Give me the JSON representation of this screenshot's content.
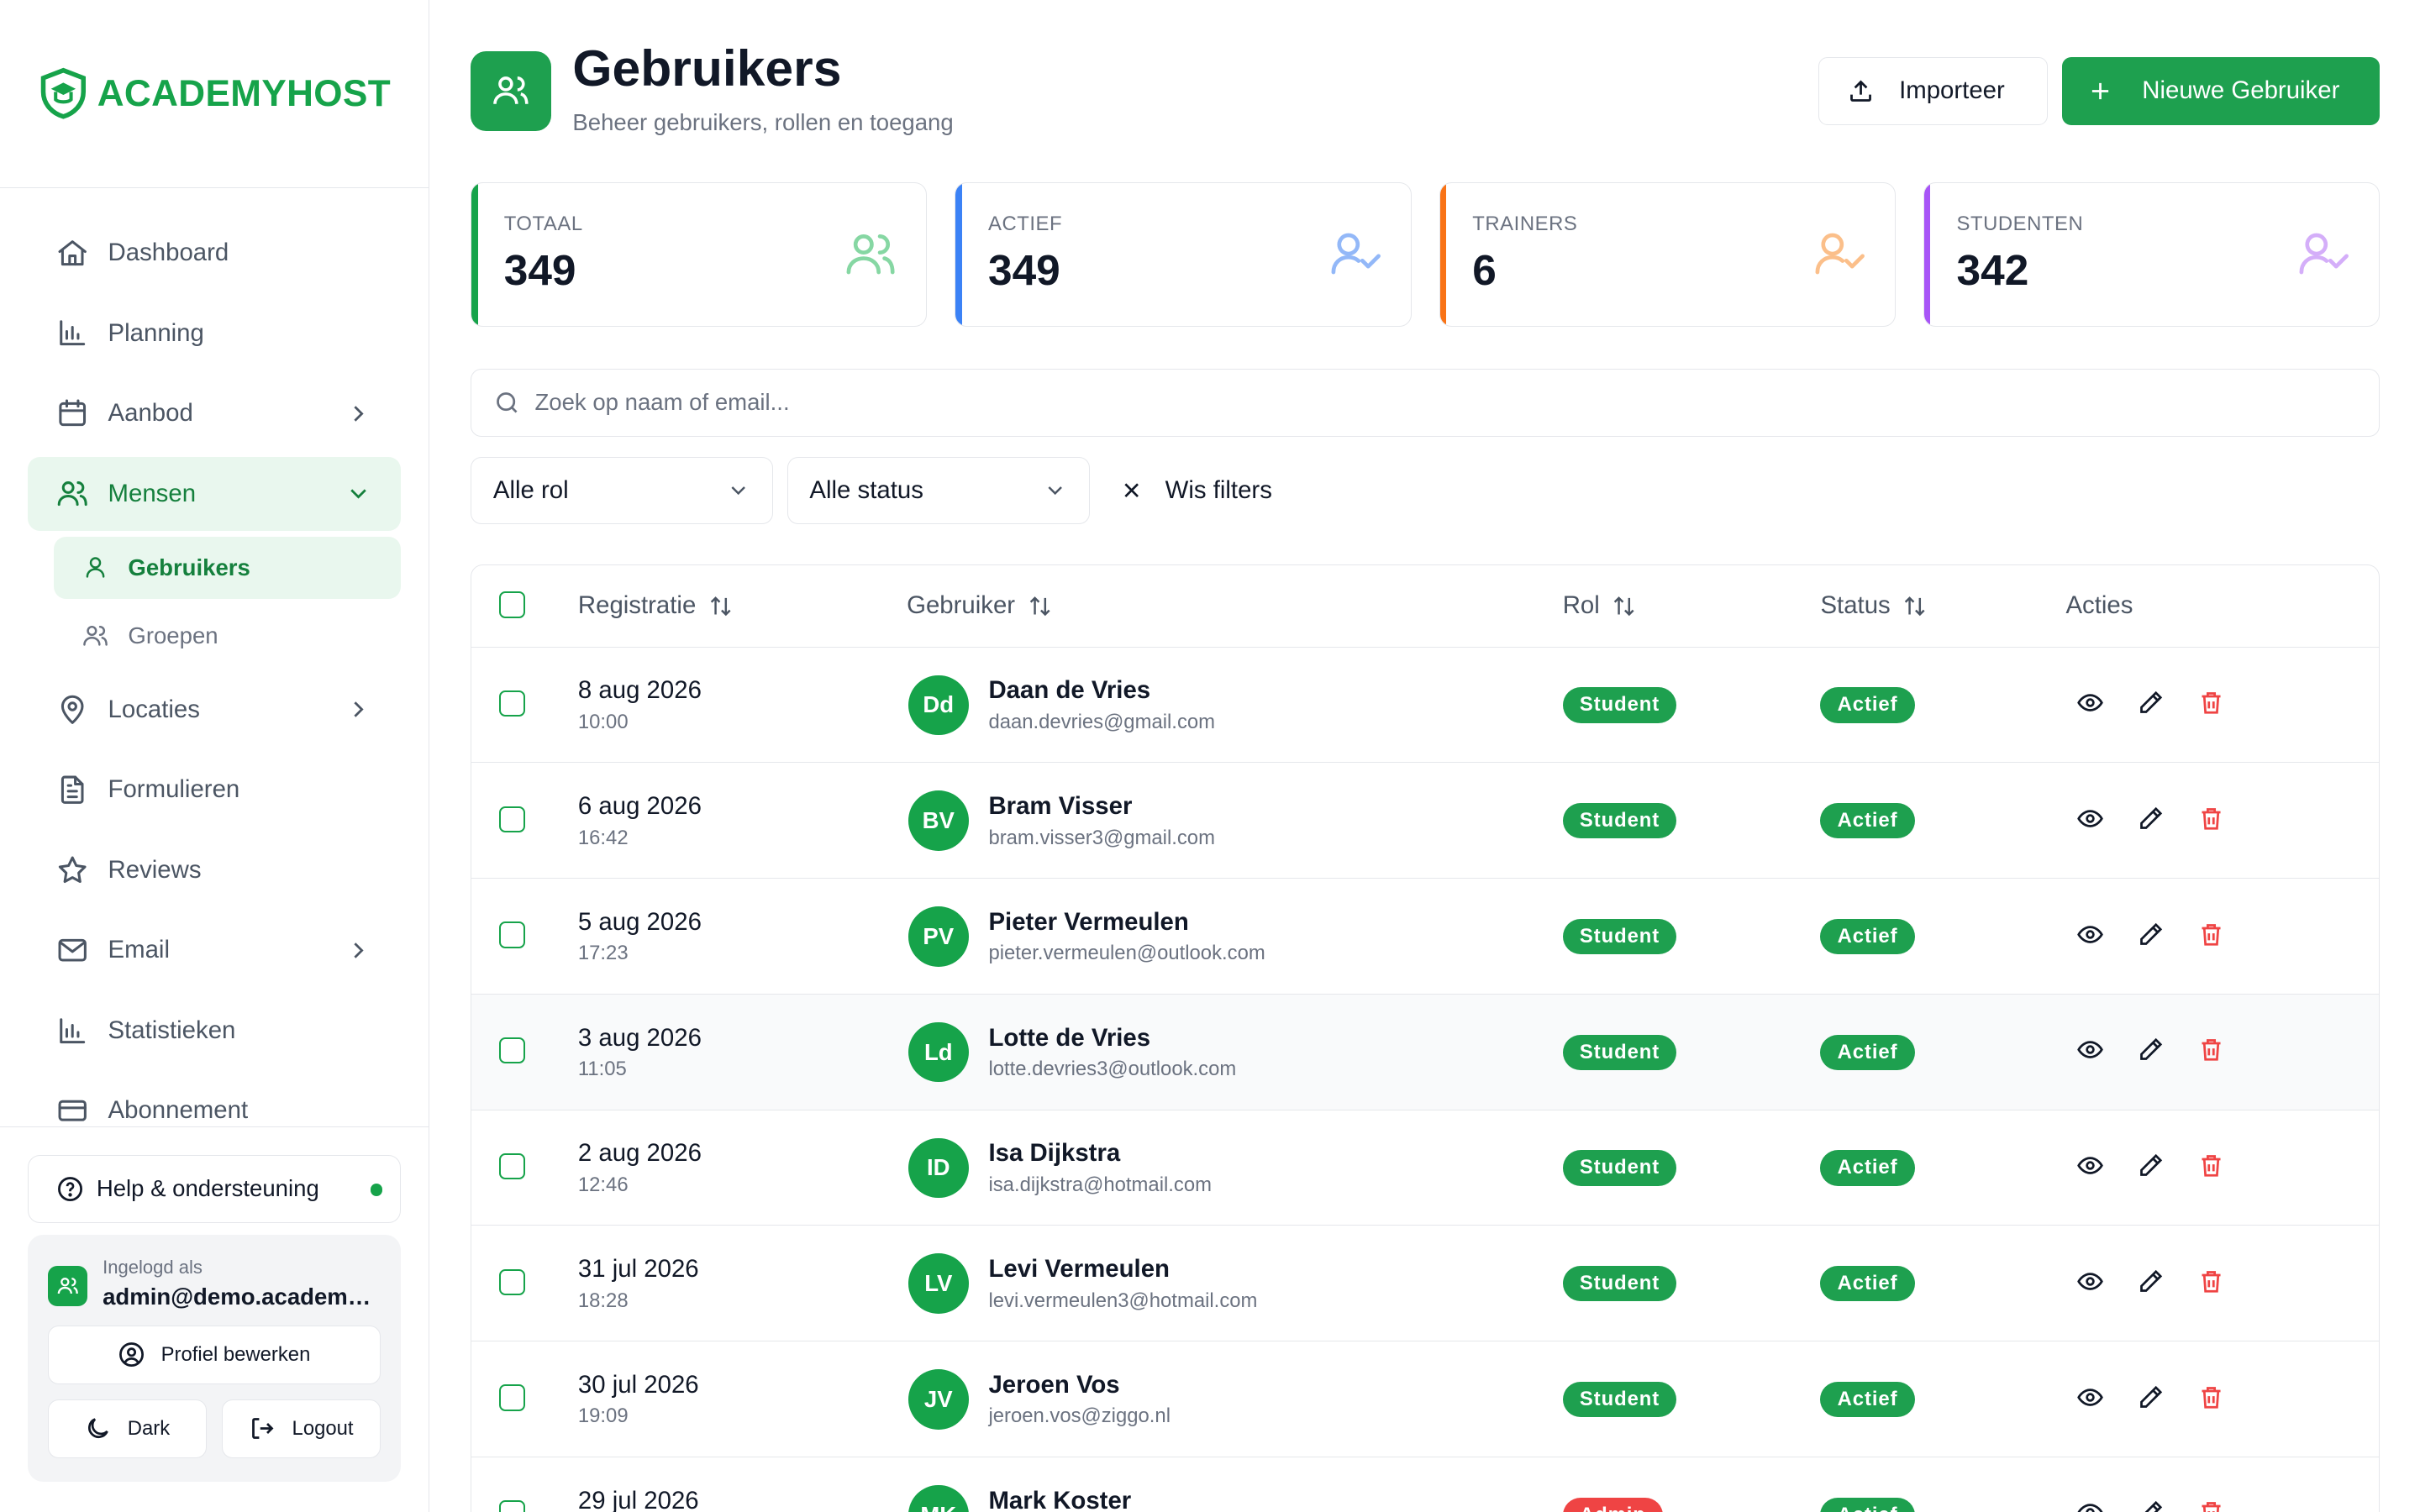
{
  "brand": {
    "name": "ACADEMYHOST",
    "color": "#16a34a"
  },
  "sidebar": {
    "items": [
      {
        "label": "Dashboard",
        "icon": "home-icon",
        "chevron": false
      },
      {
        "label": "Planning",
        "icon": "bar-chart-icon",
        "chevron": false
      },
      {
        "label": "Aanbod",
        "icon": "calendar-icon",
        "chevron": true
      },
      {
        "label": "Mensen",
        "icon": "users-icon",
        "chevron": true,
        "active": true
      },
      {
        "label": "Locaties",
        "icon": "map-pin-icon",
        "chevron": true
      },
      {
        "label": "Formulieren",
        "icon": "file-text-icon",
        "chevron": false
      },
      {
        "label": "Reviews",
        "icon": "star-icon",
        "chevron": false
      },
      {
        "label": "Email",
        "icon": "mail-icon",
        "chevron": true
      },
      {
        "label": "Statistieken",
        "icon": "bar-chart-icon",
        "chevron": false
      },
      {
        "label": "Abonnement",
        "icon": "credit-card-icon",
        "chevron": false
      }
    ],
    "subitems": [
      {
        "label": "Gebruikers",
        "icon": "user-icon",
        "active": true
      },
      {
        "label": "Groepen",
        "icon": "users-icon",
        "active": false
      }
    ],
    "help": {
      "label": "Help & ondersteuning",
      "status_color": "#16a34a"
    },
    "account": {
      "logged_in_label": "Ingelogd als",
      "email": "admin@demo.academyhost.nl",
      "profile_button": "Profiel bewerken",
      "dark_button": "Dark",
      "logout_button": "Logout"
    }
  },
  "header": {
    "title": "Gebruikers",
    "subtitle": "Beheer gebruikers, rollen en toegang",
    "import_button": "Importeer",
    "new_button": "Nieuwe Gebruiker"
  },
  "stats": [
    {
      "label": "TOTAAL",
      "value": "349",
      "color": "#16a34a",
      "icon_color": "#86d7a3",
      "icon": "users-icon"
    },
    {
      "label": "ACTIEF",
      "value": "349",
      "color": "#3b82f6",
      "icon_color": "#93b8f8",
      "icon": "user-check-icon"
    },
    {
      "label": "TRAINERS",
      "value": "6",
      "color": "#f97316",
      "icon_color": "#fbbf8a",
      "icon": "user-check-icon"
    },
    {
      "label": "STUDENTEN",
      "value": "342",
      "color": "#a855f7",
      "icon_color": "#d4aef9",
      "icon": "user-check-icon"
    }
  ],
  "search": {
    "placeholder": "Zoek op naam of email..."
  },
  "filters": {
    "role": "Alle rol",
    "status": "Alle status",
    "clear": "Wis filters"
  },
  "table": {
    "columns": {
      "registratie": "Registratie",
      "gebruiker": "Gebruiker",
      "rol": "Rol",
      "status": "Status",
      "acties": "Acties"
    },
    "rows": [
      {
        "date": "8 aug 2026",
        "time": "10:00",
        "initials": "Dd",
        "name": "Daan de Vries",
        "email": "daan.devries@gmail.com",
        "role": "Student",
        "role_color": "#1ea04f",
        "status": "Actief",
        "status_color": "#1ea04f"
      },
      {
        "date": "6 aug 2026",
        "time": "16:42",
        "initials": "BV",
        "name": "Bram Visser",
        "email": "bram.visser3@gmail.com",
        "role": "Student",
        "role_color": "#1ea04f",
        "status": "Actief",
        "status_color": "#1ea04f"
      },
      {
        "date": "5 aug 2026",
        "time": "17:23",
        "initials": "PV",
        "name": "Pieter Vermeulen",
        "email": "pieter.vermeulen@outlook.com",
        "role": "Student",
        "role_color": "#1ea04f",
        "status": "Actief",
        "status_color": "#1ea04f"
      },
      {
        "date": "3 aug 2026",
        "time": "11:05",
        "initials": "Ld",
        "name": "Lotte de Vries",
        "email": "lotte.devries3@outlook.com",
        "role": "Student",
        "role_color": "#1ea04f",
        "status": "Actief",
        "status_color": "#1ea04f",
        "hover": true
      },
      {
        "date": "2 aug 2026",
        "time": "12:46",
        "initials": "ID",
        "name": "Isa Dijkstra",
        "email": "isa.dijkstra@hotmail.com",
        "role": "Student",
        "role_color": "#1ea04f",
        "status": "Actief",
        "status_color": "#1ea04f"
      },
      {
        "date": "31 jul 2026",
        "time": "18:28",
        "initials": "LV",
        "name": "Levi Vermeulen",
        "email": "levi.vermeulen3@hotmail.com",
        "role": "Student",
        "role_color": "#1ea04f",
        "status": "Actief",
        "status_color": "#1ea04f"
      },
      {
        "date": "30 jul 2026",
        "time": "19:09",
        "initials": "JV",
        "name": "Jeroen Vos",
        "email": "jeroen.vos@ziggo.nl",
        "role": "Student",
        "role_color": "#1ea04f",
        "status": "Actief",
        "status_color": "#1ea04f"
      },
      {
        "date": "29 jul 2026",
        "time": "",
        "initials": "MK",
        "name": "Mark Koster",
        "email": "",
        "role": "Admin",
        "role_color": "#ef4444",
        "status": "Actief",
        "status_color": "#1ea04f"
      }
    ]
  }
}
